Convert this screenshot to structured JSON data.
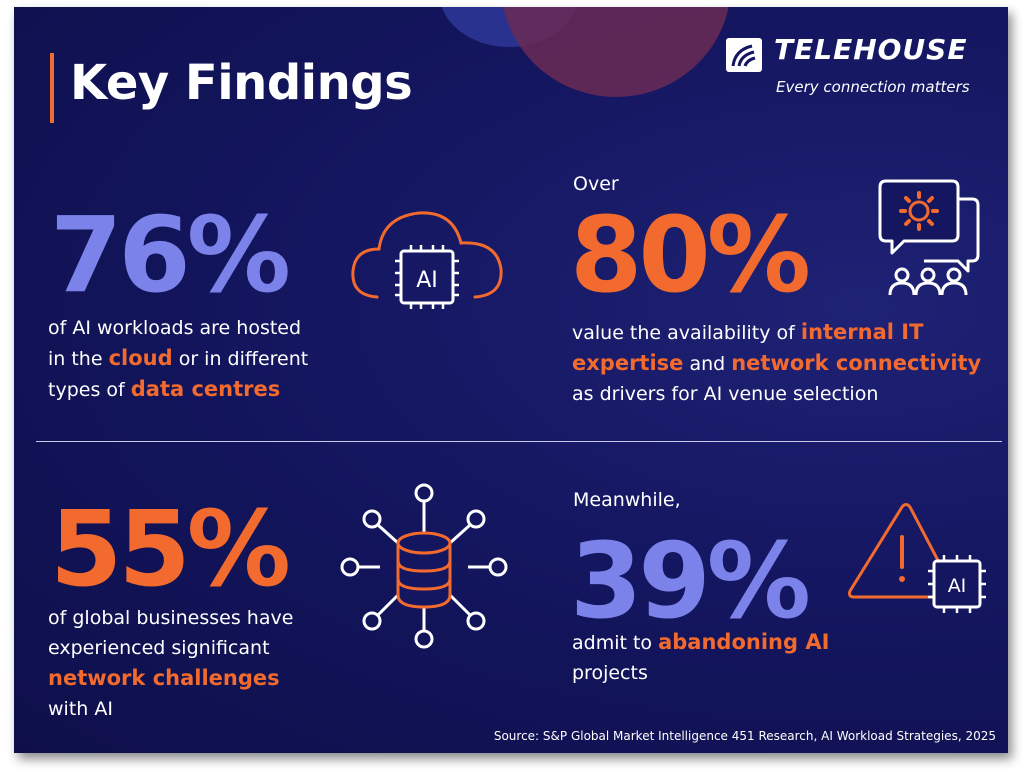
{
  "header": {
    "title": "Key Findings",
    "brand": "TELEHOUSE",
    "tagline": "Every connection matters"
  },
  "findings": [
    {
      "value": "76%",
      "color": "#7b83eb",
      "icon": "cloud-ai-chip-icon",
      "icon_label": "AI",
      "lines": [
        [
          "of AI workloads are hosted"
        ],
        [
          "in the ",
          "cloud",
          " or in different"
        ],
        [
          "types of ",
          "data centres"
        ]
      ]
    },
    {
      "prefix": "Over",
      "value": "80%",
      "color": "#f26a2e",
      "icon": "team-discussion-gear-icon",
      "lines": [
        [
          "value the availability of ",
          "internal IT"
        ],
        [
          "expertise",
          " and ",
          "network connectivity"
        ],
        [
          "as drivers for AI venue selection"
        ]
      ]
    },
    {
      "value": "55%",
      "color": "#f26a2e",
      "icon": "database-network-icon",
      "lines": [
        [
          "of global businesses have"
        ],
        [
          "experienced significant"
        ],
        [
          "network challenges"
        ],
        [
          "with AI"
        ]
      ]
    },
    {
      "prefix": "Meanwhile,",
      "value": "39%",
      "color": "#7b83eb",
      "icon": "warning-ai-chip-icon",
      "icon_label": "AI",
      "lines": [
        [
          "admit to ",
          "abandoning AI"
        ],
        [
          "projects"
        ]
      ]
    }
  ],
  "source": "Source: S&P Global Market Intelligence 451 Research, AI Workload Strategies, 2025",
  "colors": {
    "background": "#141660",
    "accent_orange": "#f26a2e",
    "accent_blue": "#7b83eb",
    "text": "#ffffff"
  }
}
